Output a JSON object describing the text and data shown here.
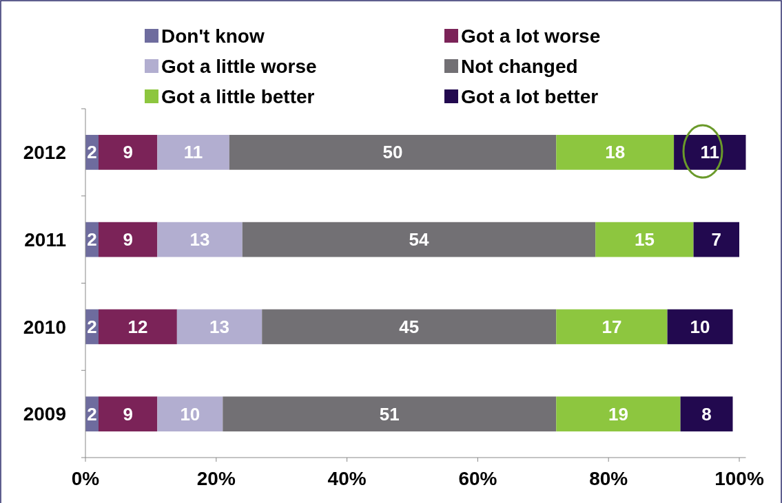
{
  "chart_data": {
    "type": "bar",
    "orientation": "horizontal",
    "stacked": true,
    "categories": [
      "2012",
      "2011",
      "2010",
      "2009"
    ],
    "series": [
      {
        "name": "Don't know",
        "color": "#6e6c9e",
        "values": [
          2,
          2,
          2,
          2
        ]
      },
      {
        "name": "Got a lot worse",
        "color": "#7b2358",
        "values": [
          9,
          9,
          12,
          9
        ]
      },
      {
        "name": "Got a little worse",
        "color": "#b2aed0",
        "values": [
          11,
          13,
          13,
          10
        ]
      },
      {
        "name": "Not changed",
        "color": "#727074",
        "values": [
          50,
          54,
          45,
          51
        ]
      },
      {
        "name": "Got a little better",
        "color": "#8dc63f",
        "values": [
          18,
          15,
          17,
          19
        ]
      },
      {
        "name": "Got a lot better",
        "color": "#22094f",
        "values": [
          11,
          7,
          10,
          8
        ]
      }
    ],
    "xlim": [
      0,
      101
    ],
    "xticks": [
      {
        "value": 0,
        "label": "0%"
      },
      {
        "value": 20,
        "label": "20%"
      },
      {
        "value": 40,
        "label": "40%"
      },
      {
        "value": 60,
        "label": "60%"
      },
      {
        "value": 80,
        "label": "80%"
      },
      {
        "value": 100,
        "label": "100%"
      }
    ],
    "data_labels": true,
    "legend": "top",
    "grid": false
  }
}
